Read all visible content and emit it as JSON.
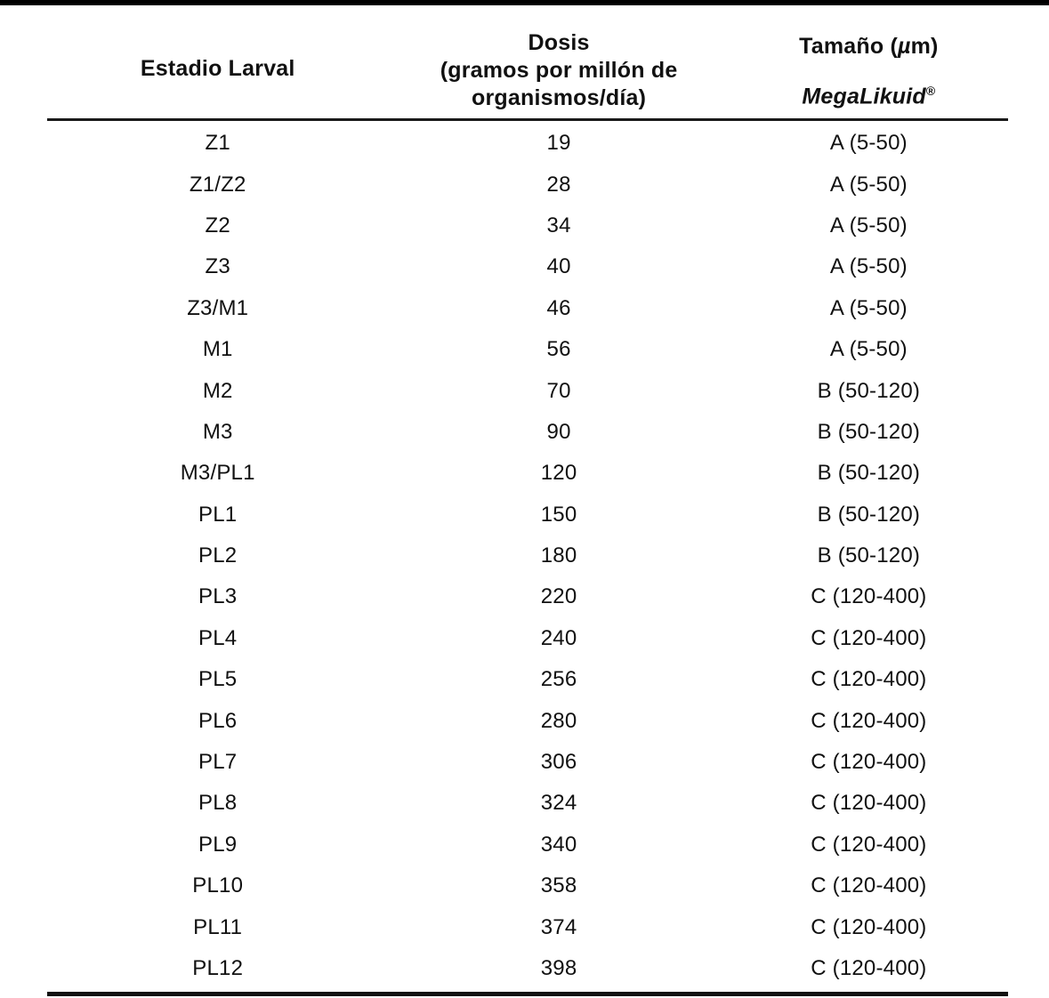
{
  "page": {
    "background_color": "#ffffff",
    "text_color": "#111111",
    "top_bar_color": "#000000",
    "rule_color": "#1a1a1a"
  },
  "table": {
    "header": {
      "col1_label": "Estadio Larval",
      "col2_line1": "Dosis",
      "col2_line2": "(gramos por millón de",
      "col2_line3": "organismos/día)",
      "col3_label_pre": "Tamaño (",
      "col3_label_mu": "µ",
      "col3_label_post": "m)",
      "col3_brand": "MegaLikuid",
      "col3_registered_mark": "®"
    },
    "rows": [
      {
        "estadio": "Z1",
        "dosis": "19",
        "tamano": "A (5-50)"
      },
      {
        "estadio": "Z1/Z2",
        "dosis": "28",
        "tamano": "A (5-50)"
      },
      {
        "estadio": "Z2",
        "dosis": "34",
        "tamano": "A (5-50)"
      },
      {
        "estadio": "Z3",
        "dosis": "40",
        "tamano": "A (5-50)"
      },
      {
        "estadio": "Z3/M1",
        "dosis": "46",
        "tamano": "A (5-50)"
      },
      {
        "estadio": "M1",
        "dosis": "56",
        "tamano": "A (5-50)"
      },
      {
        "estadio": "M2",
        "dosis": "70",
        "tamano": "B (50-120)"
      },
      {
        "estadio": "M3",
        "dosis": "90",
        "tamano": "B (50-120)"
      },
      {
        "estadio": "M3/PL1",
        "dosis": "120",
        "tamano": "B (50-120)"
      },
      {
        "estadio": "PL1",
        "dosis": "150",
        "tamano": "B (50-120)"
      },
      {
        "estadio": "PL2",
        "dosis": "180",
        "tamano": "B (50-120)"
      },
      {
        "estadio": "PL3",
        "dosis": "220",
        "tamano": "C (120-400)"
      },
      {
        "estadio": "PL4",
        "dosis": "240",
        "tamano": "C (120-400)"
      },
      {
        "estadio": "PL5",
        "dosis": "256",
        "tamano": "C (120-400)"
      },
      {
        "estadio": "PL6",
        "dosis": "280",
        "tamano": "C (120-400)"
      },
      {
        "estadio": "PL7",
        "dosis": "306",
        "tamano": "C (120-400)"
      },
      {
        "estadio": "PL8",
        "dosis": "324",
        "tamano": "C (120-400)"
      },
      {
        "estadio": "PL9",
        "dosis": "340",
        "tamano": "C (120-400)"
      },
      {
        "estadio": "PL10",
        "dosis": "358",
        "tamano": "C (120-400)"
      },
      {
        "estadio": "PL11",
        "dosis": "374",
        "tamano": "C (120-400)"
      },
      {
        "estadio": "PL12",
        "dosis": "398",
        "tamano": "C (120-400)"
      }
    ]
  }
}
